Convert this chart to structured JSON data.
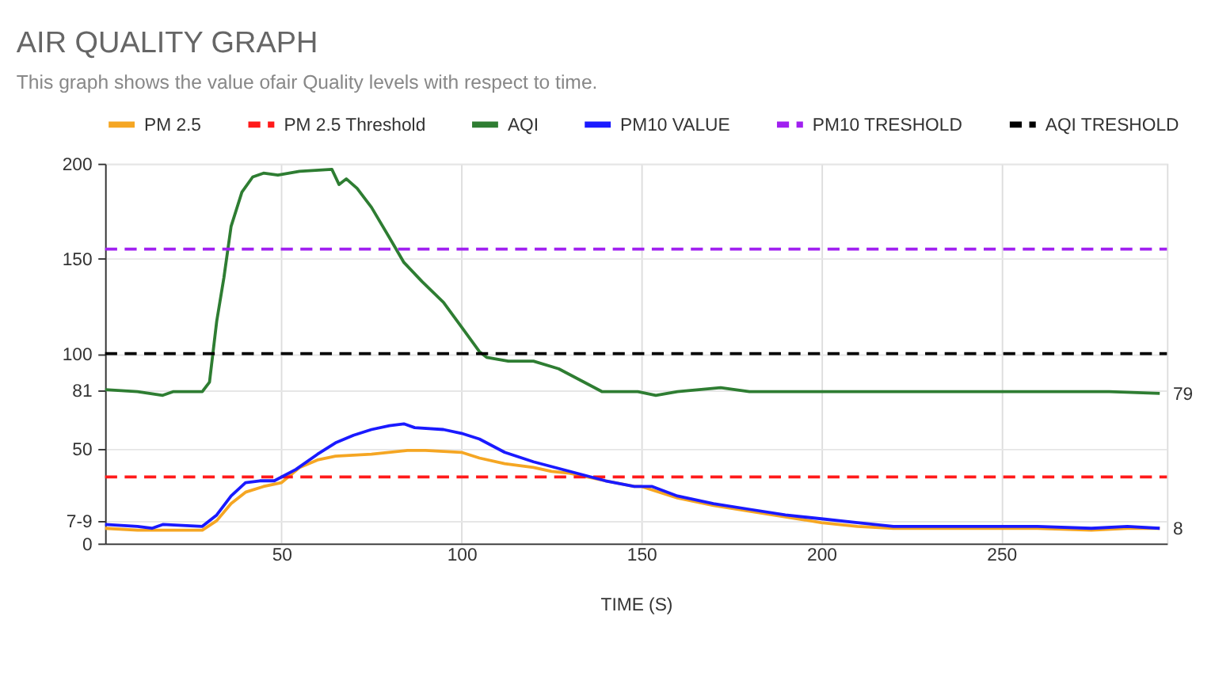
{
  "chart_data": {
    "type": "line",
    "title": "AIR QUALITY GRAPH",
    "subtitle": "This graph shows the value ofair Quality levels with respect to time.",
    "xlabel": "TIME (S)",
    "xlim": [
      1,
      296
    ],
    "xticks": [
      50,
      100,
      150,
      200,
      250
    ],
    "ylim": [
      0,
      200
    ],
    "yticks": [
      0,
      {
        "value": 12,
        "label": "7-9"
      },
      50,
      81,
      100,
      150,
      200
    ],
    "grid": true,
    "legend": "top",
    "marker": "none",
    "series": [
      {
        "name": "PM 2.5",
        "color": "#f5a623",
        "line_style": "solid",
        "x": [
          1,
          10,
          28,
          32,
          36,
          40,
          45,
          50,
          55,
          60,
          65,
          75,
          85,
          90,
          100,
          105,
          112,
          120,
          125,
          130,
          140,
          148,
          150,
          160,
          170,
          180,
          190,
          200,
          210,
          220,
          240,
          260,
          275,
          285,
          294
        ],
        "values": [
          8,
          7,
          7,
          12,
          21,
          27,
          30,
          32,
          40,
          44,
          46,
          47,
          49,
          49,
          48,
          45,
          42,
          40,
          38,
          37,
          33,
          30,
          30,
          24,
          20,
          17,
          14,
          11,
          9,
          8,
          8,
          8,
          7,
          8,
          8
        ]
      },
      {
        "name": "PM 2.5 Threshold",
        "color": "#ff1a1a",
        "line_style": "dashed",
        "x": [
          1,
          296
        ],
        "values": [
          35,
          35
        ]
      },
      {
        "name": "AQI",
        "color": "#2e7d32",
        "line_style": "solid",
        "x": [
          1,
          10,
          17,
          20,
          28,
          30,
          32,
          34,
          36,
          39,
          42,
          45,
          49,
          55,
          64,
          66,
          68,
          71,
          75,
          80,
          84,
          89,
          95,
          100,
          105,
          107,
          113,
          120,
          127,
          134,
          139,
          149,
          154,
          160,
          172,
          180,
          200,
          220,
          240,
          260,
          280,
          294
        ],
        "values": [
          81,
          80,
          78,
          80,
          80,
          85,
          117,
          140,
          167,
          185,
          193,
          195,
          194,
          196,
          197,
          189,
          192,
          187,
          177,
          161,
          148,
          138,
          127,
          114,
          101,
          98,
          96,
          96,
          92,
          85,
          80,
          80,
          78,
          80,
          82,
          80,
          80,
          80,
          80,
          80,
          80,
          79
        ]
      },
      {
        "name": "PM10 VALUE",
        "color": "#1a1aff",
        "line_style": "solid",
        "x": [
          1,
          10,
          14,
          17,
          28,
          32,
          36,
          40,
          44,
          48,
          54,
          60,
          65,
          70,
          75,
          80,
          84,
          87,
          95,
          100,
          105,
          112,
          120,
          130,
          140,
          148,
          150,
          153,
          160,
          170,
          180,
          190,
          200,
          210,
          220,
          240,
          260,
          275,
          285,
          294
        ],
        "values": [
          10,
          9,
          8,
          10,
          9,
          15,
          25,
          32,
          33,
          33,
          39,
          47,
          53,
          57,
          60,
          62,
          63,
          61,
          60,
          58,
          55,
          48,
          43,
          38,
          33,
          30,
          30,
          30,
          25,
          21,
          18,
          15,
          13,
          11,
          9,
          9,
          9,
          8,
          9,
          8
        ]
      },
      {
        "name": "PM10 TRESHOLD",
        "color": "#a020f0",
        "line_style": "dashed",
        "x": [
          1,
          296
        ],
        "values": [
          155,
          155
        ]
      },
      {
        "name": "AQI TRESHOLD",
        "color": "#000000",
        "line_style": "dashed",
        "x": [
          1,
          296
        ],
        "values": [
          100,
          100
        ]
      }
    ],
    "annotations": [
      {
        "text": "79",
        "x": 296,
        "y": 79
      },
      {
        "text": "8",
        "x": 296,
        "y": 8
      }
    ]
  }
}
